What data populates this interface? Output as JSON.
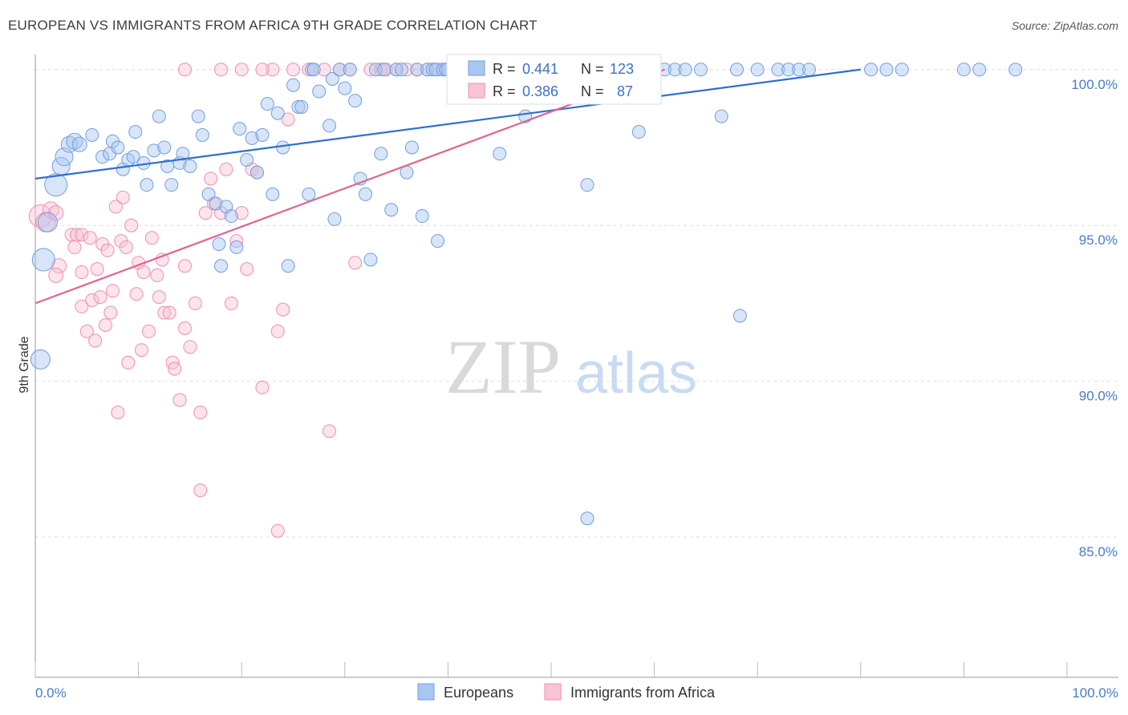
{
  "title": "EUROPEAN VS IMMIGRANTS FROM AFRICA 9TH GRADE CORRELATION CHART",
  "source": "Source: ZipAtlas.com",
  "watermark": {
    "zip": "ZIP",
    "atlas": "atlas"
  },
  "colors": {
    "blue": "#6f9fe0",
    "blue_fill": "#a9c6f0",
    "blue_line": "#2f6fd0",
    "pink": "#f08db0",
    "pink_fill": "#f8c3d5",
    "pink_line": "#e0648f",
    "grid": "#dedede",
    "axis_text": "#4a7bc8"
  },
  "chart_data": {
    "type": "scatter",
    "ylabel": "9th Grade",
    "xlim": [
      0,
      100
    ],
    "ylim": [
      80.5,
      100.2
    ],
    "x_tick_labels": {
      "min": "0.0%",
      "max": "100.0%"
    },
    "y_ticks": [
      {
        "value": 100,
        "label": "100.0%"
      },
      {
        "value": 95,
        "label": "95.0%"
      },
      {
        "value": 90,
        "label": "90.0%"
      },
      {
        "value": 85,
        "label": "85.0%"
      }
    ],
    "stats": [
      {
        "series": "Europeans",
        "r_label": "R =",
        "r": "0.441",
        "n_label": "N =",
        "n": "123"
      },
      {
        "series": "Immigrants from Africa",
        "r_label": "R =",
        "r": "0.386",
        "n_label": "N =",
        "n": "87"
      }
    ],
    "series": [
      {
        "name": "Europeans",
        "trend": {
          "x1": 0,
          "y1": 96.5,
          "x2": 80,
          "y2": 100.0
        },
        "points": [
          [
            0.5,
            90.7,
            12
          ],
          [
            0.8,
            93.9,
            14
          ],
          [
            1.2,
            95.1,
            12
          ],
          [
            2.0,
            96.3,
            14
          ],
          [
            2.5,
            96.9,
            11
          ],
          [
            2.8,
            97.2,
            11
          ],
          [
            3.3,
            97.6,
            10
          ],
          [
            3.8,
            97.7,
            10
          ],
          [
            4.3,
            97.6,
            9
          ],
          [
            5.5,
            97.9,
            8
          ],
          [
            6.5,
            97.2,
            8
          ],
          [
            7.2,
            97.3,
            8
          ],
          [
            7.5,
            97.7,
            8
          ],
          [
            8.0,
            97.5,
            8
          ],
          [
            8.5,
            96.8,
            8
          ],
          [
            9.0,
            97.1,
            8
          ],
          [
            9.5,
            97.2,
            8
          ],
          [
            9.7,
            98.0,
            8
          ],
          [
            10.5,
            97.0,
            8
          ],
          [
            10.8,
            96.3,
            8
          ],
          [
            11.5,
            97.4,
            8
          ],
          [
            12.0,
            98.5,
            8
          ],
          [
            12.5,
            97.5,
            8
          ],
          [
            12.8,
            96.9,
            8
          ],
          [
            13.2,
            96.3,
            8
          ],
          [
            14.0,
            97.0,
            8
          ],
          [
            14.3,
            97.3,
            8
          ],
          [
            15.0,
            96.9,
            8
          ],
          [
            15.8,
            98.5,
            8
          ],
          [
            16.2,
            97.9,
            8
          ],
          [
            16.8,
            96.0,
            8
          ],
          [
            17.5,
            95.7,
            8
          ],
          [
            17.8,
            94.4,
            8
          ],
          [
            18.0,
            93.7,
            8
          ],
          [
            18.5,
            95.6,
            8
          ],
          [
            19.0,
            95.3,
            8
          ],
          [
            19.5,
            94.3,
            8
          ],
          [
            19.8,
            98.1,
            8
          ],
          [
            20.5,
            97.1,
            8
          ],
          [
            21.0,
            97.8,
            8
          ],
          [
            21.5,
            96.7,
            8
          ],
          [
            22.0,
            97.9,
            8
          ],
          [
            22.5,
            98.9,
            8
          ],
          [
            23.0,
            96.0,
            8
          ],
          [
            23.5,
            98.6,
            8
          ],
          [
            24.0,
            97.5,
            8
          ],
          [
            24.5,
            93.7,
            8
          ],
          [
            25.0,
            99.5,
            8
          ],
          [
            25.5,
            98.8,
            8
          ],
          [
            25.8,
            98.8,
            8
          ],
          [
            26.5,
            96.0,
            8
          ],
          [
            26.8,
            100.0,
            8
          ],
          [
            27.0,
            100.0,
            8
          ],
          [
            27.5,
            99.3,
            8
          ],
          [
            28.5,
            98.2,
            8
          ],
          [
            28.8,
            99.7,
            8
          ],
          [
            29.0,
            95.2,
            8
          ],
          [
            29.5,
            100.0,
            8
          ],
          [
            30.0,
            99.4,
            8
          ],
          [
            30.5,
            100.0,
            8
          ],
          [
            31.0,
            99.0,
            8
          ],
          [
            31.5,
            96.5,
            8
          ],
          [
            32.0,
            96.0,
            8
          ],
          [
            32.5,
            93.9,
            8
          ],
          [
            33.0,
            100.0,
            8
          ],
          [
            33.5,
            97.3,
            8
          ],
          [
            33.8,
            100.0,
            8
          ],
          [
            34.5,
            95.5,
            8
          ],
          [
            35.0,
            100.0,
            8
          ],
          [
            35.5,
            100.0,
            8
          ],
          [
            36.0,
            96.7,
            8
          ],
          [
            36.5,
            97.5,
            8
          ],
          [
            37.0,
            100.0,
            8
          ],
          [
            37.5,
            95.3,
            8
          ],
          [
            38.0,
            100.0,
            8
          ],
          [
            38.5,
            100.0,
            8
          ],
          [
            38.8,
            100.0,
            8
          ],
          [
            39.0,
            94.5,
            8
          ],
          [
            39.5,
            100.0,
            8
          ],
          [
            40.0,
            100.0,
            8
          ],
          [
            40.5,
            100.0,
            8
          ],
          [
            42.0,
            100.0,
            8
          ],
          [
            43.0,
            100.0,
            8
          ],
          [
            44.5,
            100.0,
            8
          ],
          [
            45.0,
            100.0,
            8
          ],
          [
            46.0,
            100.0,
            8
          ],
          [
            47.0,
            100.0,
            8
          ],
          [
            47.5,
            98.5,
            8
          ],
          [
            48.0,
            100.0,
            8
          ],
          [
            49.5,
            100.0,
            8
          ],
          [
            50.5,
            100.0,
            8
          ],
          [
            51.0,
            100.0,
            8
          ],
          [
            52.0,
            100.0,
            8
          ],
          [
            53.5,
            96.3,
            8
          ],
          [
            54.0,
            100.0,
            8
          ],
          [
            55.0,
            100.0,
            8
          ],
          [
            56.0,
            100.0,
            8
          ],
          [
            56.5,
            100.0,
            8
          ],
          [
            58.0,
            99.2,
            8
          ],
          [
            58.5,
            100.0,
            8
          ],
          [
            60.0,
            100.0,
            8
          ],
          [
            61.0,
            100.0,
            8
          ],
          [
            62.0,
            100.0,
            8
          ],
          [
            63.0,
            100.0,
            8
          ],
          [
            64.5,
            100.0,
            8
          ],
          [
            66.5,
            98.5,
            8
          ],
          [
            68.0,
            100.0,
            8
          ],
          [
            68.3,
            92.1,
            8
          ],
          [
            70.0,
            100.0,
            8
          ],
          [
            72.0,
            100.0,
            8
          ],
          [
            73.0,
            100.0,
            8
          ],
          [
            74.0,
            100.0,
            8
          ],
          [
            75.0,
            100.0,
            8
          ],
          [
            81.0,
            100.0,
            8
          ],
          [
            82.5,
            100.0,
            8
          ],
          [
            84.0,
            100.0,
            8
          ],
          [
            90.0,
            100.0,
            8
          ],
          [
            91.5,
            100.0,
            8
          ],
          [
            95.0,
            100.0,
            8
          ],
          [
            53.5,
            85.6,
            8
          ],
          [
            58.5,
            98.0,
            8
          ],
          [
            45.0,
            97.3,
            8
          ],
          [
            39.8,
            100.0,
            8
          ]
        ]
      },
      {
        "name": "Immigrants from Africa",
        "trend": {
          "x1": 0,
          "y1": 92.5,
          "x2": 61,
          "y2": 100.0
        },
        "points": [
          [
            0.5,
            95.3,
            14
          ],
          [
            1.0,
            95.1,
            12
          ],
          [
            1.5,
            95.5,
            10
          ],
          [
            2.0,
            95.4,
            9
          ],
          [
            2.3,
            93.7,
            9
          ],
          [
            2.0,
            93.4,
            9
          ],
          [
            3.5,
            94.7,
            8
          ],
          [
            3.8,
            94.3,
            8
          ],
          [
            4.0,
            94.7,
            8
          ],
          [
            4.5,
            93.5,
            8
          ],
          [
            4.5,
            92.4,
            8
          ],
          [
            4.5,
            94.7,
            8
          ],
          [
            5.0,
            91.6,
            8
          ],
          [
            5.3,
            94.6,
            8
          ],
          [
            5.5,
            92.6,
            8
          ],
          [
            5.8,
            91.3,
            8
          ],
          [
            6.0,
            93.6,
            8
          ],
          [
            6.3,
            92.7,
            8
          ],
          [
            6.5,
            94.4,
            8
          ],
          [
            6.8,
            91.8,
            8
          ],
          [
            7.0,
            94.2,
            8
          ],
          [
            7.3,
            92.2,
            8
          ],
          [
            7.5,
            92.9,
            8
          ],
          [
            7.8,
            95.6,
            8
          ],
          [
            8.0,
            89.0,
            8
          ],
          [
            8.3,
            94.5,
            8
          ],
          [
            8.5,
            95.9,
            8
          ],
          [
            8.8,
            94.3,
            8
          ],
          [
            9.0,
            90.6,
            8
          ],
          [
            9.3,
            95.0,
            8
          ],
          [
            9.8,
            92.8,
            8
          ],
          [
            10.0,
            93.8,
            8
          ],
          [
            10.3,
            91.0,
            8
          ],
          [
            10.5,
            93.5,
            8
          ],
          [
            11.0,
            91.6,
            8
          ],
          [
            11.3,
            94.6,
            8
          ],
          [
            11.8,
            93.4,
            8
          ],
          [
            12.0,
            92.7,
            8
          ],
          [
            12.3,
            93.9,
            8
          ],
          [
            12.5,
            92.2,
            8
          ],
          [
            13.0,
            92.2,
            8
          ],
          [
            13.3,
            90.6,
            8
          ],
          [
            13.5,
            90.4,
            8
          ],
          [
            14.0,
            89.4,
            8
          ],
          [
            14.5,
            91.7,
            8
          ],
          [
            14.5,
            93.7,
            8
          ],
          [
            15.0,
            91.1,
            8
          ],
          [
            15.5,
            92.5,
            8
          ],
          [
            16.0,
            89.0,
            8
          ],
          [
            16.5,
            95.4,
            8
          ],
          [
            17.0,
            96.5,
            8
          ],
          [
            17.3,
            95.7,
            8
          ],
          [
            18.0,
            95.4,
            8
          ],
          [
            18.5,
            96.8,
            8
          ],
          [
            19.0,
            92.5,
            8
          ],
          [
            19.5,
            94.5,
            8
          ],
          [
            20.0,
            95.4,
            8
          ],
          [
            20.5,
            93.6,
            8
          ],
          [
            21.0,
            96.8,
            8
          ],
          [
            21.5,
            96.7,
            8
          ],
          [
            22.0,
            89.8,
            8
          ],
          [
            23.0,
            100.0,
            8
          ],
          [
            23.5,
            91.6,
            8
          ],
          [
            24.0,
            92.3,
            8
          ],
          [
            24.5,
            98.4,
            8
          ],
          [
            25.0,
            100.0,
            8
          ],
          [
            26.5,
            100.0,
            8
          ],
          [
            28.0,
            100.0,
            8
          ],
          [
            28.5,
            88.4,
            8
          ],
          [
            29.5,
            100.0,
            8
          ],
          [
            30.5,
            100.0,
            8
          ],
          [
            31.0,
            93.8,
            8
          ],
          [
            32.5,
            100.0,
            8
          ],
          [
            33.5,
            100.0,
            8
          ],
          [
            34.0,
            100.0,
            8
          ],
          [
            35.0,
            100.0,
            8
          ],
          [
            36.0,
            100.0,
            8
          ],
          [
            38.0,
            100.0,
            8
          ],
          [
            16.0,
            86.5,
            8
          ],
          [
            23.5,
            85.2,
            8
          ],
          [
            14.5,
            100.0,
            8
          ],
          [
            18.0,
            100.0,
            8
          ],
          [
            20.0,
            100.0,
            8
          ],
          [
            22.0,
            100.0,
            8
          ],
          [
            37.0,
            100.0,
            8
          ],
          [
            39.0,
            100.0,
            8
          ],
          [
            40.0,
            100.0,
            8
          ]
        ]
      }
    ]
  }
}
